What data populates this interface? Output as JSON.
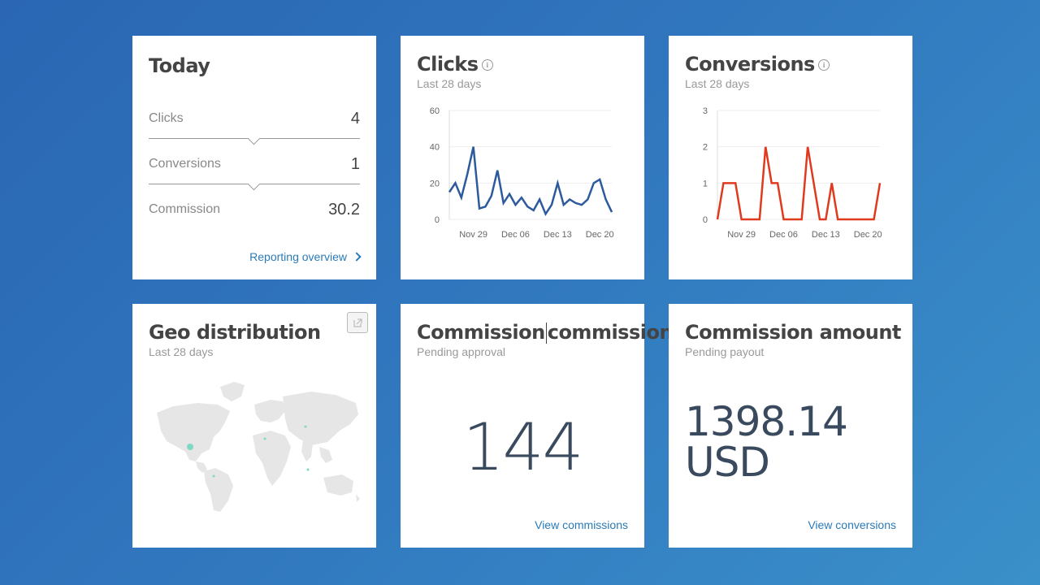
{
  "today": {
    "title": "Today",
    "rows": [
      {
        "label": "Clicks",
        "value": "4"
      },
      {
        "label": "Conversions",
        "value": "1"
      },
      {
        "label": "Commission",
        "value": "30.2"
      }
    ],
    "link": "Reporting overview"
  },
  "clicks": {
    "title": "Clicks",
    "subtitle": "Last 28 days"
  },
  "conversions": {
    "title": "Conversions",
    "subtitle": "Last 28 days"
  },
  "geo": {
    "title": "Geo distribution",
    "subtitle": "Last 28 days"
  },
  "commissions": {
    "title_part1": "Commission",
    "title_part2": "commissions",
    "subtitle": "Pending approval",
    "value": "144",
    "link": "View commissions"
  },
  "amount": {
    "title": "Commission amount",
    "subtitle": "Pending payout",
    "value_line1": "1398.14",
    "value_line2": "USD",
    "link": "View conversions"
  },
  "colors": {
    "clicks_line": "#2c5a9c",
    "conversions_line": "#e03a1e",
    "geo_dot": "#7fd8c3"
  },
  "chart_data": [
    {
      "type": "line",
      "title": "Clicks",
      "subtitle": "Last 28 days",
      "x": [
        "Nov 25",
        "Nov 26",
        "Nov 27",
        "Nov 28",
        "Nov 29",
        "Nov 30",
        "Dec 01",
        "Dec 02",
        "Dec 03",
        "Dec 04",
        "Dec 05",
        "Dec 06",
        "Dec 07",
        "Dec 08",
        "Dec 09",
        "Dec 10",
        "Dec 11",
        "Dec 12",
        "Dec 13",
        "Dec 14",
        "Dec 15",
        "Dec 16",
        "Dec 17",
        "Dec 18",
        "Dec 19",
        "Dec 20",
        "Dec 21",
        "Dec 22"
      ],
      "values": [
        15,
        20,
        12,
        25,
        40,
        6,
        7,
        13,
        27,
        9,
        14,
        8,
        12,
        7,
        5,
        11,
        3,
        8,
        20,
        8,
        11,
        9,
        8,
        11,
        20,
        22,
        11,
        4
      ],
      "xticks": [
        "Nov 29",
        "Dec 06",
        "Dec 13",
        "Dec 20"
      ],
      "ylim": [
        0,
        60
      ],
      "yticks": [
        0,
        20,
        40,
        60
      ],
      "grid": true
    },
    {
      "type": "line",
      "title": "Conversions",
      "subtitle": "Last 28 days",
      "x": [
        "Nov 25",
        "Nov 26",
        "Nov 27",
        "Nov 28",
        "Nov 29",
        "Nov 30",
        "Dec 01",
        "Dec 02",
        "Dec 03",
        "Dec 04",
        "Dec 05",
        "Dec 06",
        "Dec 07",
        "Dec 08",
        "Dec 09",
        "Dec 10",
        "Dec 11",
        "Dec 12",
        "Dec 13",
        "Dec 14",
        "Dec 15",
        "Dec 16",
        "Dec 17",
        "Dec 18",
        "Dec 19",
        "Dec 20",
        "Dec 21",
        "Dec 22"
      ],
      "values": [
        0,
        1,
        1,
        1,
        0,
        0,
        0,
        0,
        2,
        1,
        1,
        0,
        0,
        0,
        0,
        2,
        1,
        0,
        0,
        1,
        0,
        0,
        0,
        0,
        0,
        0,
        0,
        1
      ],
      "xticks": [
        "Nov 29",
        "Dec 06",
        "Dec 13",
        "Dec 20"
      ],
      "ylim": [
        0,
        3
      ],
      "yticks": [
        0,
        1,
        2,
        3
      ],
      "grid": true
    }
  ]
}
